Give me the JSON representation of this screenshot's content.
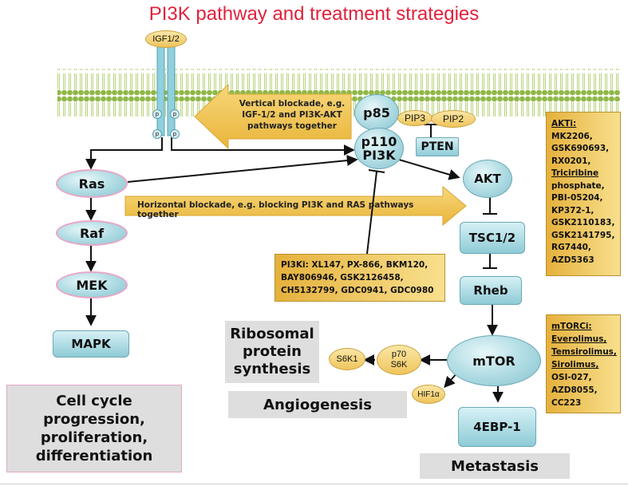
{
  "title": "PI3K pathway and treatment strategies",
  "receptor": {
    "label": "IGF1/2",
    "sites": [
      "p",
      "p",
      "p",
      "p"
    ]
  },
  "nodes": {
    "p85": "p85",
    "p110": "p110",
    "pi3k": "PI3K",
    "pip3": "PIP3",
    "pip2": "PIP2",
    "pten": "PTEN",
    "akt": "AKT",
    "tsc": "TSC1/2",
    "rheb": "Rheb",
    "mtor": "mTOR",
    "p70": "p70",
    "s6k": "S6K",
    "s6k1": "S6K1",
    "hif": "HIF1α",
    "ebp": "4EBP-1",
    "ras": "Ras",
    "raf": "Raf",
    "mek": "MEK",
    "mapk": "MAPK"
  },
  "arrows": {
    "vertical": [
      "Vertical blockade, e.g.",
      "IGF-1/2 and PI3K-AKT",
      "pathways together"
    ],
    "horizontal": "Horizontal blockade, e.g. blocking PI3K and RAS pathways together"
  },
  "inhibitors": {
    "akti": {
      "title": "AKTi:",
      "items": [
        "MK2206,",
        "GSK690693,",
        "RX0201,",
        "Triciribine",
        "phosphate,",
        "PBI-05204,",
        "KP372-1,",
        "GSK2110183,",
        "GSK2141795,",
        "RG7440,",
        "AZD5363"
      ]
    },
    "pi3ki": [
      "PI3Ki: XL147, PX-866, BKM120,",
      "BAY806946, GSK2126458,",
      "CH5132799, GDC0941, GDC0980"
    ],
    "mtorci": {
      "title": "mTORCi:",
      "items": [
        "Everolimus,",
        "Temsirolimus,",
        "Sirolimus,",
        "OSI-027,",
        "AZD8055,",
        "CC223"
      ]
    }
  },
  "outcomes": {
    "ribosomal": [
      "Ribosomal",
      "protein",
      "synthesis"
    ],
    "angiogenesis": "Angiogenesis",
    "metastasis": "Metastasis",
    "cellcycle": [
      "Cell cycle",
      "progression,",
      "proliferation,",
      "differentiation"
    ]
  },
  "colors": {
    "title": "#e0223c",
    "membrane": "#8fb847",
    "node_fill": "#a6d6de",
    "inhibitor_box": "#efc55c",
    "arrow_fill": "#f2c14e",
    "outcome_box": "#dedede"
  }
}
